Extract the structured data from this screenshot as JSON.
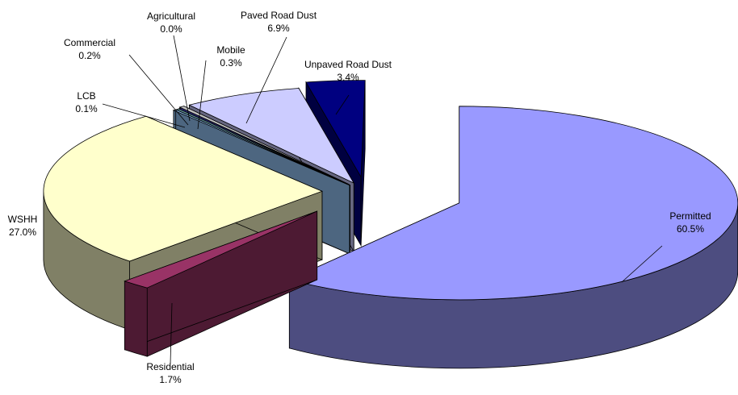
{
  "chart_data": {
    "type": "pie",
    "style": "3d-exploded",
    "title": "",
    "slices": [
      {
        "name": "Permitted",
        "value": 60.5,
        "label": "60.5%",
        "color": "#9999ff",
        "side_color": "#4d4d80"
      },
      {
        "name": "Residential",
        "value": 1.7,
        "label": "1.7%",
        "color": "#993366",
        "side_color": "#4d1a33"
      },
      {
        "name": "WSHH",
        "value": 27.0,
        "label": "27.0%",
        "color": "#ffffcc",
        "side_color": "#808066"
      },
      {
        "name": "LCB",
        "value": 0.1,
        "label": "0.1%",
        "color": "#99ccff",
        "side_color": "#4d6680"
      },
      {
        "name": "Commercial",
        "value": 0.2,
        "label": "0.2%",
        "color": "#6699a0",
        "side_color": "#334d50"
      },
      {
        "name": "Agricultural",
        "value": 0.0,
        "label": "0.0%",
        "color": "#333399",
        "side_color": "#1a1a4d"
      },
      {
        "name": "Mobile",
        "value": 0.3,
        "label": "0.3%",
        "color": "#c0c0c0",
        "side_color": "#606060"
      },
      {
        "name": "Paved Road Dust",
        "value": 6.9,
        "label": "6.9%",
        "color": "#ccccff",
        "side_color": "#666680"
      },
      {
        "name": "Unpaved Road Dust",
        "value": 3.4,
        "label": "3.4%",
        "color": "#000080",
        "side_color": "#000040"
      }
    ]
  }
}
